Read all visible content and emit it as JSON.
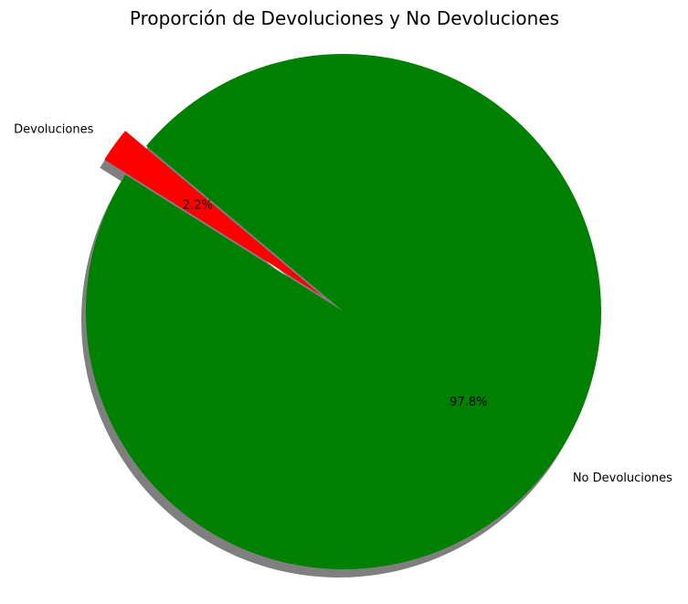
{
  "chart_data": {
    "type": "pie",
    "title": "Proporción de Devoluciones y No Devoluciones",
    "categories": [
      "Devoluciones",
      "No Devoluciones"
    ],
    "values": [
      2.2,
      97.8
    ],
    "percent_labels": [
      "2.2%",
      "97.8%"
    ],
    "colors": [
      "#ff0000",
      "#008000"
    ],
    "explode": [
      0.1,
      0
    ],
    "shadow": true,
    "start_angle": 140,
    "legend": "none"
  }
}
